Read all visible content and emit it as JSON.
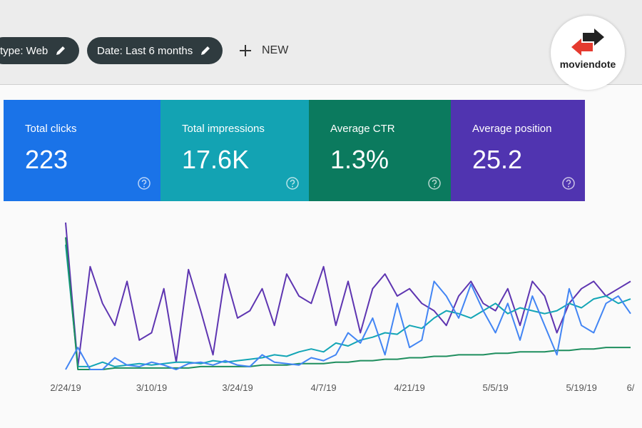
{
  "filters": [
    {
      "label": "type: Web"
    },
    {
      "label": "Date: Last 6 months"
    }
  ],
  "new_button": "NEW",
  "logo": "moviendote",
  "metrics": [
    {
      "label": "Total clicks",
      "value": "223",
      "color": "#1a73e8"
    },
    {
      "label": "Total impressions",
      "value": "17.6K",
      "color": "#13a3b3"
    },
    {
      "label": "Average CTR",
      "value": "1.3%",
      "color": "#0b7a5e"
    },
    {
      "label": "Average position",
      "value": "25.2",
      "color": "#5034b0"
    }
  ],
  "chart_data": {
    "type": "line",
    "xlim": [
      0,
      46
    ],
    "ylim": [
      0,
      100
    ],
    "xticks": [
      {
        "value": 0,
        "label": "2/24/19"
      },
      {
        "value": 7,
        "label": "3/10/19"
      },
      {
        "value": 14,
        "label": "3/24/19"
      },
      {
        "value": 21,
        "label": "4/7/19"
      },
      {
        "value": 28,
        "label": "4/21/19"
      },
      {
        "value": 35,
        "label": "5/5/19"
      },
      {
        "value": 42,
        "label": "5/19/19"
      },
      {
        "value": 46,
        "label": "6/"
      }
    ],
    "series": [
      {
        "color": "#5e35b1",
        "values": [
          100,
          2,
          70,
          45,
          30,
          60,
          20,
          25,
          55,
          5,
          68,
          40,
          10,
          65,
          35,
          40,
          55,
          30,
          65,
          50,
          45,
          70,
          30,
          60,
          25,
          55,
          65,
          50,
          55,
          45,
          40,
          30,
          50,
          60,
          45,
          40,
          55,
          30,
          60,
          50,
          25,
          45,
          55,
          60,
          50,
          55,
          60
        ]
      },
      {
        "color": "#12a5b5",
        "values": [
          85,
          2,
          2,
          5,
          2,
          3,
          4,
          3,
          4,
          5,
          5,
          4,
          6,
          5,
          6,
          7,
          8,
          10,
          9,
          12,
          14,
          12,
          18,
          16,
          20,
          22,
          25,
          24,
          30,
          28,
          35,
          40,
          38,
          35,
          40,
          45,
          38,
          42,
          40,
          38,
          40,
          45,
          42,
          48,
          50,
          45,
          48
        ]
      },
      {
        "color": "#1e8e5e",
        "values": [
          90,
          0,
          0,
          0,
          1,
          1,
          1,
          1,
          1,
          1,
          1,
          2,
          2,
          2,
          2,
          2,
          3,
          3,
          3,
          4,
          4,
          4,
          5,
          5,
          6,
          6,
          7,
          7,
          8,
          8,
          9,
          9,
          10,
          10,
          10,
          11,
          11,
          12,
          12,
          12,
          13,
          13,
          14,
          14,
          15,
          15,
          15
        ]
      },
      {
        "color": "#4285f4",
        "values": [
          0,
          15,
          0,
          0,
          8,
          3,
          2,
          5,
          3,
          0,
          4,
          5,
          3,
          6,
          3,
          2,
          10,
          5,
          4,
          3,
          8,
          6,
          10,
          25,
          18,
          35,
          10,
          45,
          15,
          20,
          60,
          50,
          35,
          58,
          40,
          25,
          45,
          20,
          50,
          30,
          10,
          55,
          30,
          25,
          45,
          50,
          38
        ]
      }
    ]
  }
}
